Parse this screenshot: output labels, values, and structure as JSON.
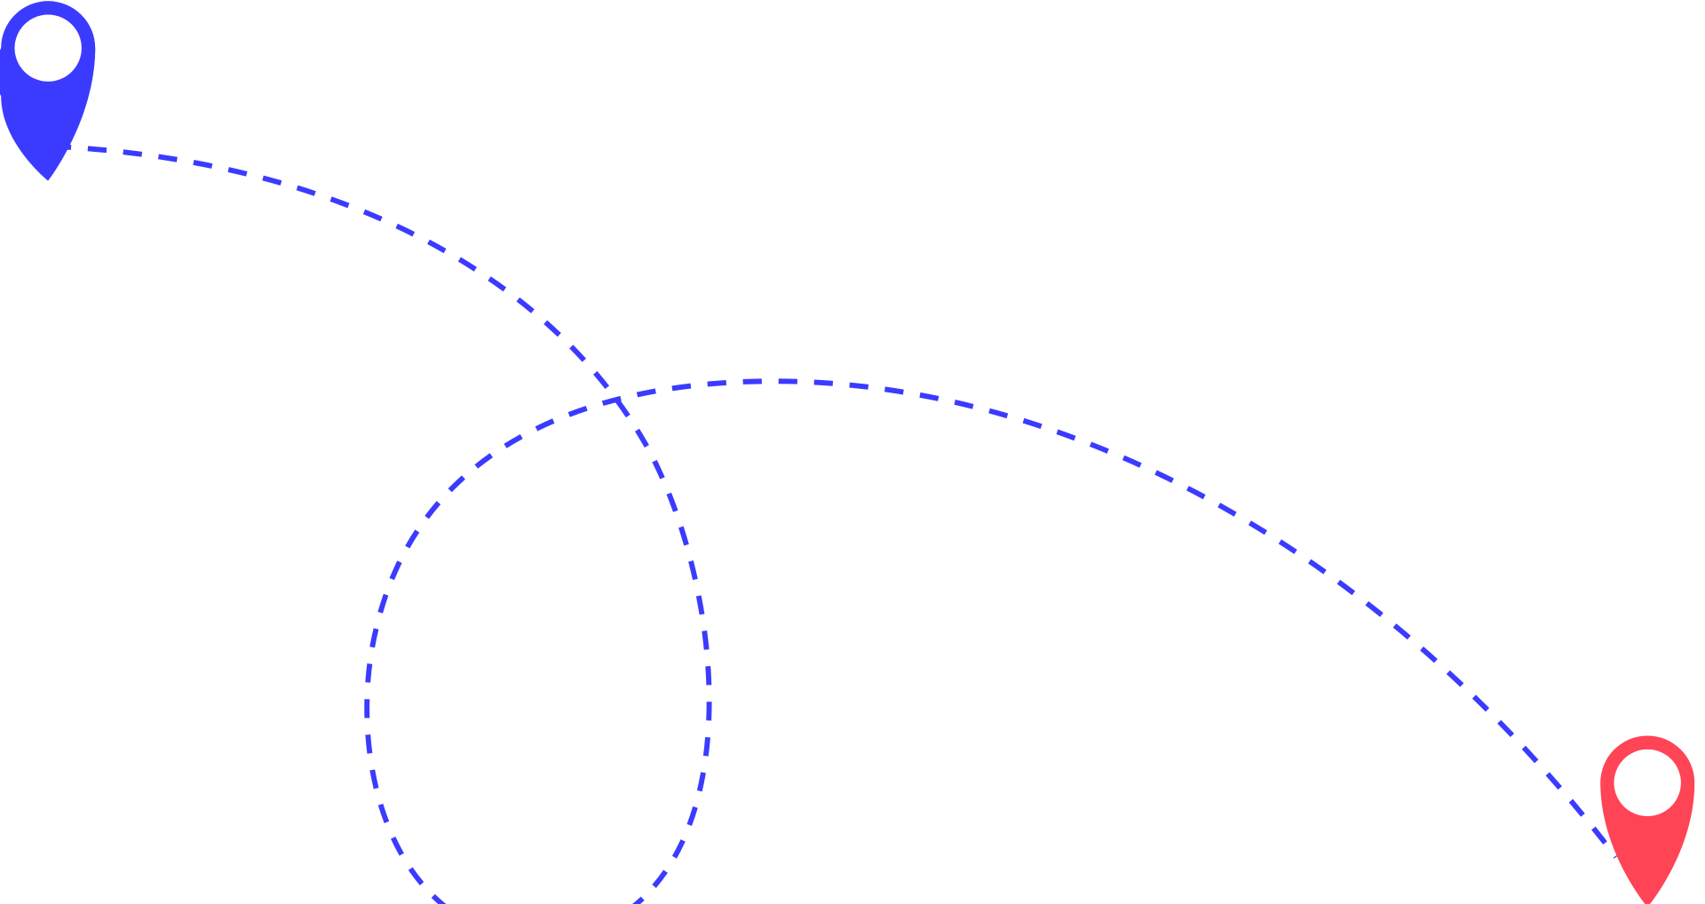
{
  "illustration": {
    "start_pin": {
      "icon": "map-pin-icon",
      "color": "#3b3bff"
    },
    "end_pin": {
      "icon": "map-pin-icon",
      "color": "#ff4455"
    },
    "route": {
      "style": "dashed",
      "color": "#3b3bff"
    },
    "background": "#ffffff"
  }
}
